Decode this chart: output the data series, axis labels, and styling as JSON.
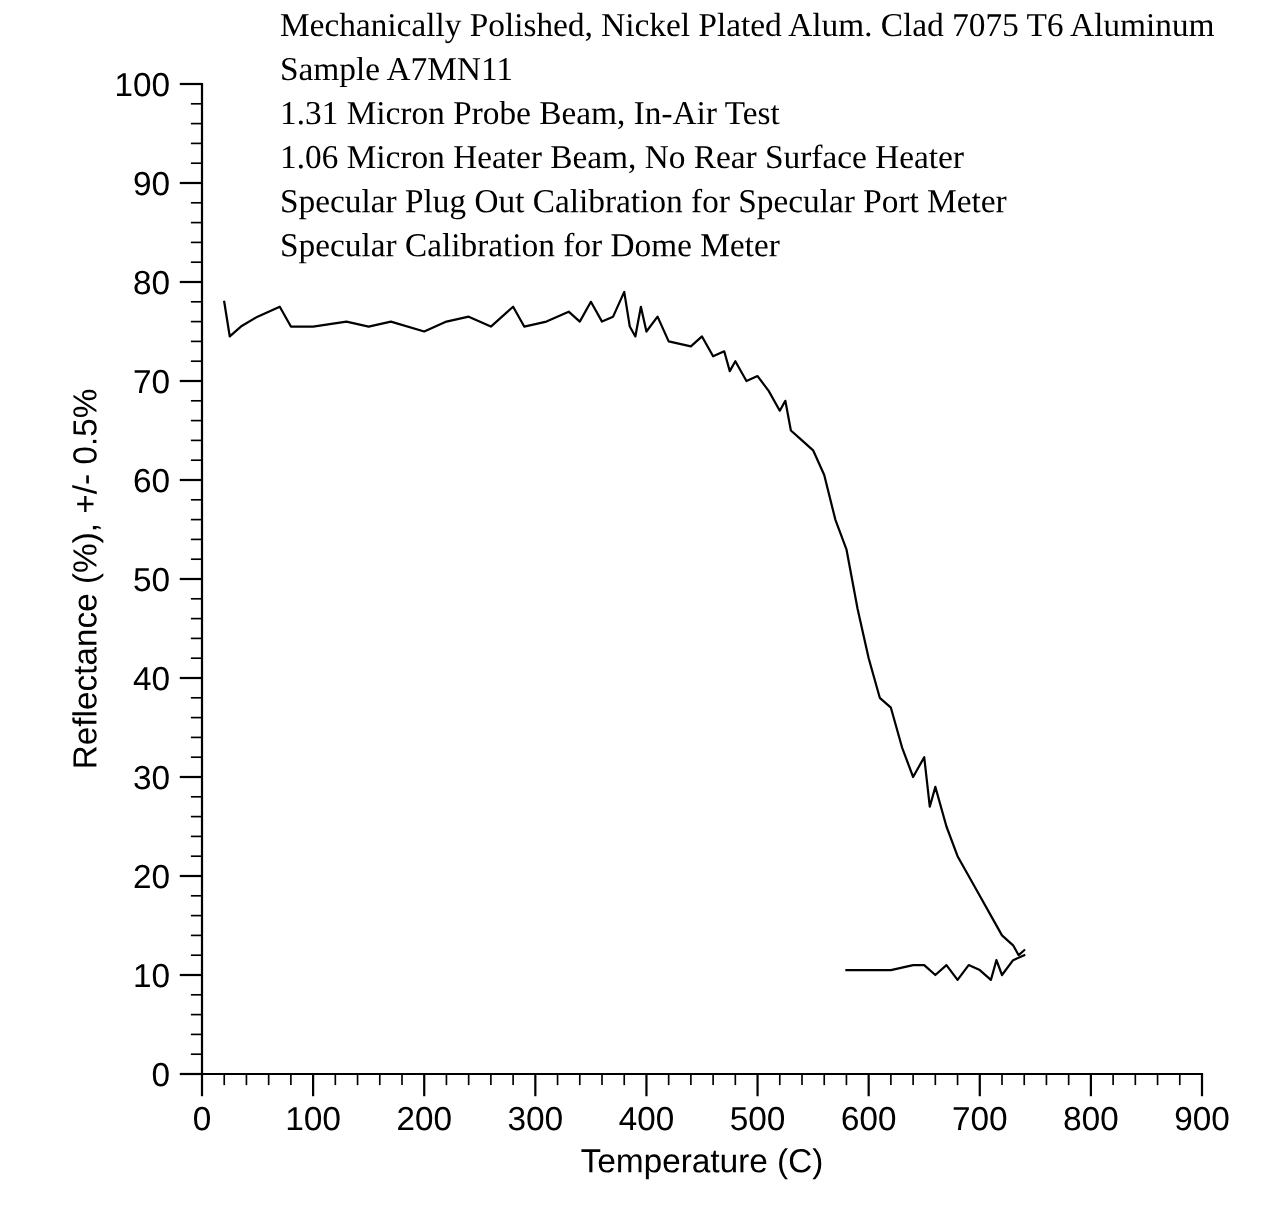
{
  "chart_data": {
    "type": "line",
    "xlabel": "Temperature (C)",
    "ylabel": "Reflectance (%), +/- 0.5%",
    "annotations": [
      "Mechanically Polished, Nickel Plated Alum. Clad 7075 T6 Aluminum",
      "Sample A7MN11",
      "1.31 Micron Probe Beam, In-Air Test",
      "1.06 Micron Heater Beam, No Rear Surface Heater",
      "Specular Plug Out Calibration for Specular Port Meter",
      "Specular Calibration for Dome Meter"
    ],
    "xlim": [
      0,
      900
    ],
    "ylim": [
      0,
      100
    ],
    "xticks": [
      0,
      100,
      200,
      300,
      400,
      500,
      600,
      700,
      800,
      900
    ],
    "yticks": [
      0,
      10,
      20,
      30,
      40,
      50,
      60,
      70,
      80,
      90,
      100
    ],
    "grid": false,
    "legend": false,
    "marker": "none",
    "line_style": "solid",
    "series": [
      {
        "color": "#000000",
        "x": [
          20,
          25,
          35,
          50,
          70,
          80,
          100,
          130,
          150,
          170,
          200,
          220,
          240,
          260,
          280,
          290,
          310,
          330,
          340,
          350,
          360,
          370,
          380,
          385,
          390,
          395,
          400,
          410,
          420,
          440,
          450,
          460,
          470,
          475,
          480,
          490,
          500,
          510,
          520,
          525,
          530,
          540,
          550,
          560,
          570,
          580,
          590,
          600,
          610,
          620,
          630,
          640,
          650,
          655,
          660,
          670,
          680,
          690,
          700,
          710,
          720,
          730,
          735,
          740
        ],
        "values": [
          78,
          74.5,
          75.5,
          76.5,
          77.5,
          75.5,
          75.5,
          76,
          75.5,
          76,
          75,
          76,
          76.5,
          75.5,
          77.5,
          75.5,
          76,
          77,
          76,
          78,
          76,
          76.5,
          79,
          75.5,
          74.5,
          77.5,
          75,
          76.5,
          74,
          73.5,
          74.5,
          72.5,
          73,
          71,
          72,
          70,
          70.5,
          69,
          67,
          68,
          65,
          64,
          63,
          60.5,
          56,
          53,
          47,
          42,
          38,
          37,
          33,
          30,
          32,
          27,
          29,
          25,
          22,
          20,
          18,
          16,
          14,
          13,
          12,
          12.5
        ]
      },
      {
        "color": "#000000",
        "x": [
          740,
          730,
          720,
          715,
          710,
          700,
          690,
          680,
          670,
          660,
          650,
          640,
          620,
          600,
          580
        ],
        "values": [
          12,
          11.5,
          10,
          11.5,
          9.5,
          10.5,
          11,
          9.5,
          11,
          10,
          11,
          11,
          10.5,
          10.5,
          10.5
        ]
      }
    ]
  }
}
